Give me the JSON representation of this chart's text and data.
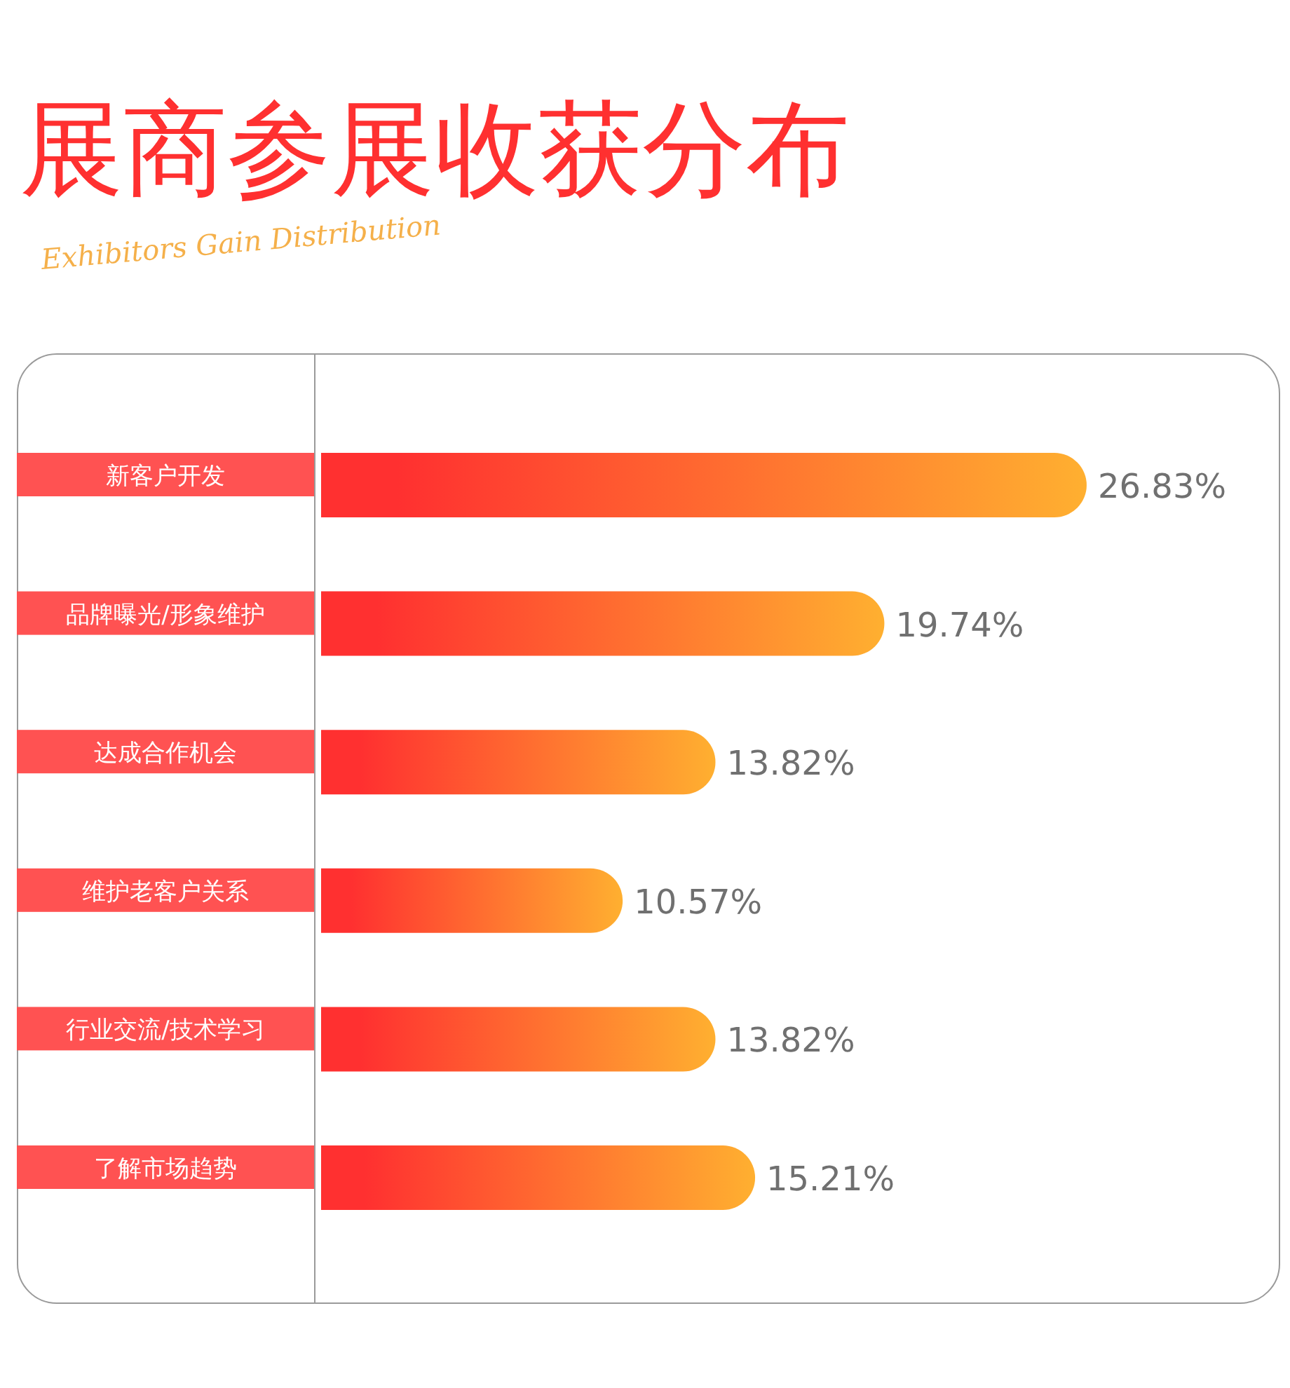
{
  "chart_data": {
    "type": "bar",
    "orientation": "horizontal",
    "title": "展商参展收获分布",
    "subtitle": "Exhibitors Gain Distribution",
    "categories": [
      "新客户开发",
      "品牌曝光/形象维护",
      "达成合作机会",
      "维护老客户关系",
      "行业交流/技术学习",
      "了解市场趋势"
    ],
    "values": [
      26.83,
      19.74,
      13.82,
      10.57,
      13.82,
      15.21
    ],
    "value_labels": [
      "26.83%",
      "19.74%",
      "13.82%",
      "10.57%",
      "13.82%",
      "15.21%"
    ],
    "color": "#ff3030"
  }
}
